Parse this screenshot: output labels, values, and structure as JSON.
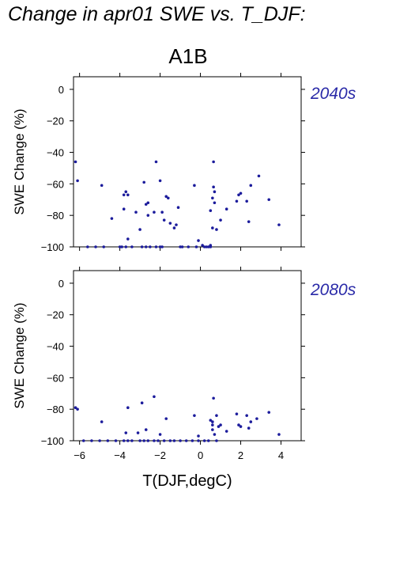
{
  "figure": {
    "title": "Change in apr01 SWE vs. T_DJF:",
    "scenario": "A1B",
    "xlabel": "T(DJF,degC)"
  },
  "colors": {
    "points": "#1c1c9c",
    "era_label": "#2a2aa8",
    "axes": "#000000"
  },
  "chart_data": [
    {
      "type": "scatter",
      "title": "2040s",
      "ylabel": "SWE Change (%)",
      "xlim": [
        -6.3,
        5.0
      ],
      "ylim": [
        -100,
        8
      ],
      "xticks": [
        -6,
        -4,
        -2,
        0,
        2,
        4
      ],
      "yticks": [
        0,
        -20,
        -40,
        -60,
        -80,
        -100
      ],
      "xtick_labels_shown": false,
      "points": [
        [
          -6.2,
          -46
        ],
        [
          -6.1,
          -58
        ],
        [
          -4.9,
          -61
        ],
        [
          -4.4,
          -82
        ],
        [
          -3.8,
          -67
        ],
        [
          -3.7,
          -65
        ],
        [
          -3.6,
          -67
        ],
        [
          -3.8,
          -76
        ],
        [
          -3.6,
          -95
        ],
        [
          -3.2,
          -78
        ],
        [
          -3.0,
          -89
        ],
        [
          -2.8,
          -59
        ],
        [
          -2.7,
          -73
        ],
        [
          -2.6,
          -72
        ],
        [
          -2.6,
          -80
        ],
        [
          -2.3,
          -78
        ],
        [
          -2.2,
          -46
        ],
        [
          -2.0,
          -58
        ],
        [
          -1.9,
          -78
        ],
        [
          -1.8,
          -83
        ],
        [
          -1.7,
          -68
        ],
        [
          -1.6,
          -69
        ],
        [
          -1.5,
          -85
        ],
        [
          -1.3,
          -88
        ],
        [
          -1.2,
          -86
        ],
        [
          -1.1,
          -75
        ],
        [
          -0.3,
          -61
        ],
        [
          -0.1,
          -96
        ],
        [
          0.1,
          -99
        ],
        [
          0.5,
          -77
        ],
        [
          0.5,
          -99
        ],
        [
          0.6,
          -69
        ],
        [
          0.65,
          -46
        ],
        [
          0.65,
          -62
        ],
        [
          0.7,
          -65
        ],
        [
          0.7,
          -72
        ],
        [
          0.6,
          -88
        ],
        [
          0.8,
          -89
        ],
        [
          1.0,
          -83
        ],
        [
          1.3,
          -76
        ],
        [
          1.8,
          -71
        ],
        [
          1.9,
          -67
        ],
        [
          2.0,
          -66
        ],
        [
          2.3,
          -71
        ],
        [
          2.4,
          -84
        ],
        [
          2.5,
          -61
        ],
        [
          2.9,
          -55
        ],
        [
          3.4,
          -70
        ],
        [
          3.9,
          -86
        ],
        [
          -5.6,
          -100
        ],
        [
          -5.2,
          -100
        ],
        [
          -4.8,
          -100
        ],
        [
          -4.0,
          -100
        ],
        [
          -3.9,
          -100
        ],
        [
          -3.7,
          -100
        ],
        [
          -3.4,
          -100
        ],
        [
          -2.9,
          -100
        ],
        [
          -2.7,
          -100
        ],
        [
          -2.5,
          -100
        ],
        [
          -2.2,
          -100
        ],
        [
          -2.0,
          -100
        ],
        [
          -1.9,
          -100
        ],
        [
          -1.0,
          -100
        ],
        [
          -0.9,
          -100
        ],
        [
          -0.6,
          -100
        ],
        [
          -0.2,
          -100
        ],
        [
          0.2,
          -100
        ],
        [
          0.3,
          -100
        ],
        [
          0.4,
          -100
        ],
        [
          0.5,
          -100
        ]
      ]
    },
    {
      "type": "scatter",
      "title": "2080s",
      "ylabel": "SWE Change (%)",
      "xlim": [
        -6.3,
        5.0
      ],
      "ylim": [
        -100,
        8
      ],
      "xticks": [
        -6,
        -4,
        -2,
        0,
        2,
        4
      ],
      "yticks": [
        0,
        -20,
        -40,
        -60,
        -80,
        -100
      ],
      "xtick_labels_shown": true,
      "points": [
        [
          -6.2,
          -79
        ],
        [
          -6.1,
          -80
        ],
        [
          -4.9,
          -88
        ],
        [
          -3.7,
          -95
        ],
        [
          -3.6,
          -79
        ],
        [
          -3.1,
          -95
        ],
        [
          -2.9,
          -76
        ],
        [
          -2.7,
          -93
        ],
        [
          -2.3,
          -72
        ],
        [
          -2.0,
          -96
        ],
        [
          -1.7,
          -86
        ],
        [
          -0.3,
          -84
        ],
        [
          -0.1,
          -97
        ],
        [
          0.5,
          -87
        ],
        [
          0.6,
          -88
        ],
        [
          0.6,
          -90
        ],
        [
          0.6,
          -93
        ],
        [
          0.65,
          -73
        ],
        [
          0.7,
          -96
        ],
        [
          0.8,
          -84
        ],
        [
          0.9,
          -91
        ],
        [
          1.0,
          -90
        ],
        [
          1.3,
          -94
        ],
        [
          1.8,
          -83
        ],
        [
          1.9,
          -90
        ],
        [
          2.0,
          -91
        ],
        [
          2.3,
          -84
        ],
        [
          2.4,
          -92
        ],
        [
          2.5,
          -88
        ],
        [
          2.8,
          -86
        ],
        [
          3.4,
          -82
        ],
        [
          3.9,
          -96
        ],
        [
          -5.8,
          -100
        ],
        [
          -5.4,
          -100
        ],
        [
          -5.0,
          -100
        ],
        [
          -4.6,
          -100
        ],
        [
          -4.2,
          -100
        ],
        [
          -3.8,
          -100
        ],
        [
          -3.6,
          -100
        ],
        [
          -3.4,
          -100
        ],
        [
          -3.0,
          -100
        ],
        [
          -2.8,
          -100
        ],
        [
          -2.6,
          -100
        ],
        [
          -2.3,
          -100
        ],
        [
          -2.1,
          -100
        ],
        [
          -1.8,
          -100
        ],
        [
          -1.5,
          -100
        ],
        [
          -1.3,
          -100
        ],
        [
          -1.0,
          -100
        ],
        [
          -0.7,
          -100
        ],
        [
          -0.4,
          -100
        ],
        [
          -0.1,
          -100
        ],
        [
          0.2,
          -100
        ],
        [
          0.4,
          -100
        ],
        [
          0.8,
          -100
        ]
      ]
    }
  ]
}
